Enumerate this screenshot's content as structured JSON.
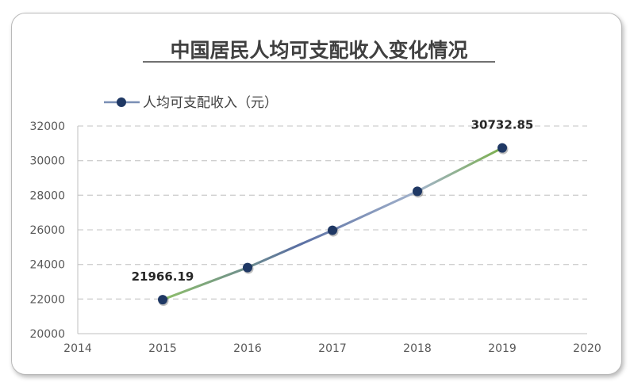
{
  "chart_data": {
    "type": "line",
    "title": "中国居民人均可支配收入变化情况",
    "xlabel": "",
    "ylabel": "",
    "xlim": [
      2014,
      2020
    ],
    "ylim": [
      20000,
      32000
    ],
    "x_ticks": [
      "2014",
      "2015",
      "2016",
      "2017",
      "2018",
      "2019",
      "2020"
    ],
    "y_ticks": [
      "20000",
      "22000",
      "24000",
      "26000",
      "28000",
      "30000",
      "32000"
    ],
    "grid": "horizontal dashed",
    "legend_position": "top-left",
    "series": [
      {
        "name": "人均可支配收入（元）",
        "color": "#1f3864",
        "x": [
          2015,
          2016,
          2017,
          2018,
          2019
        ],
        "values": [
          21966.19,
          23821,
          25974,
          28228,
          30732.85
        ]
      }
    ],
    "data_labels": [
      {
        "x": 2015,
        "text": "21966.19"
      },
      {
        "x": 2019,
        "text": "30732.85"
      }
    ]
  }
}
